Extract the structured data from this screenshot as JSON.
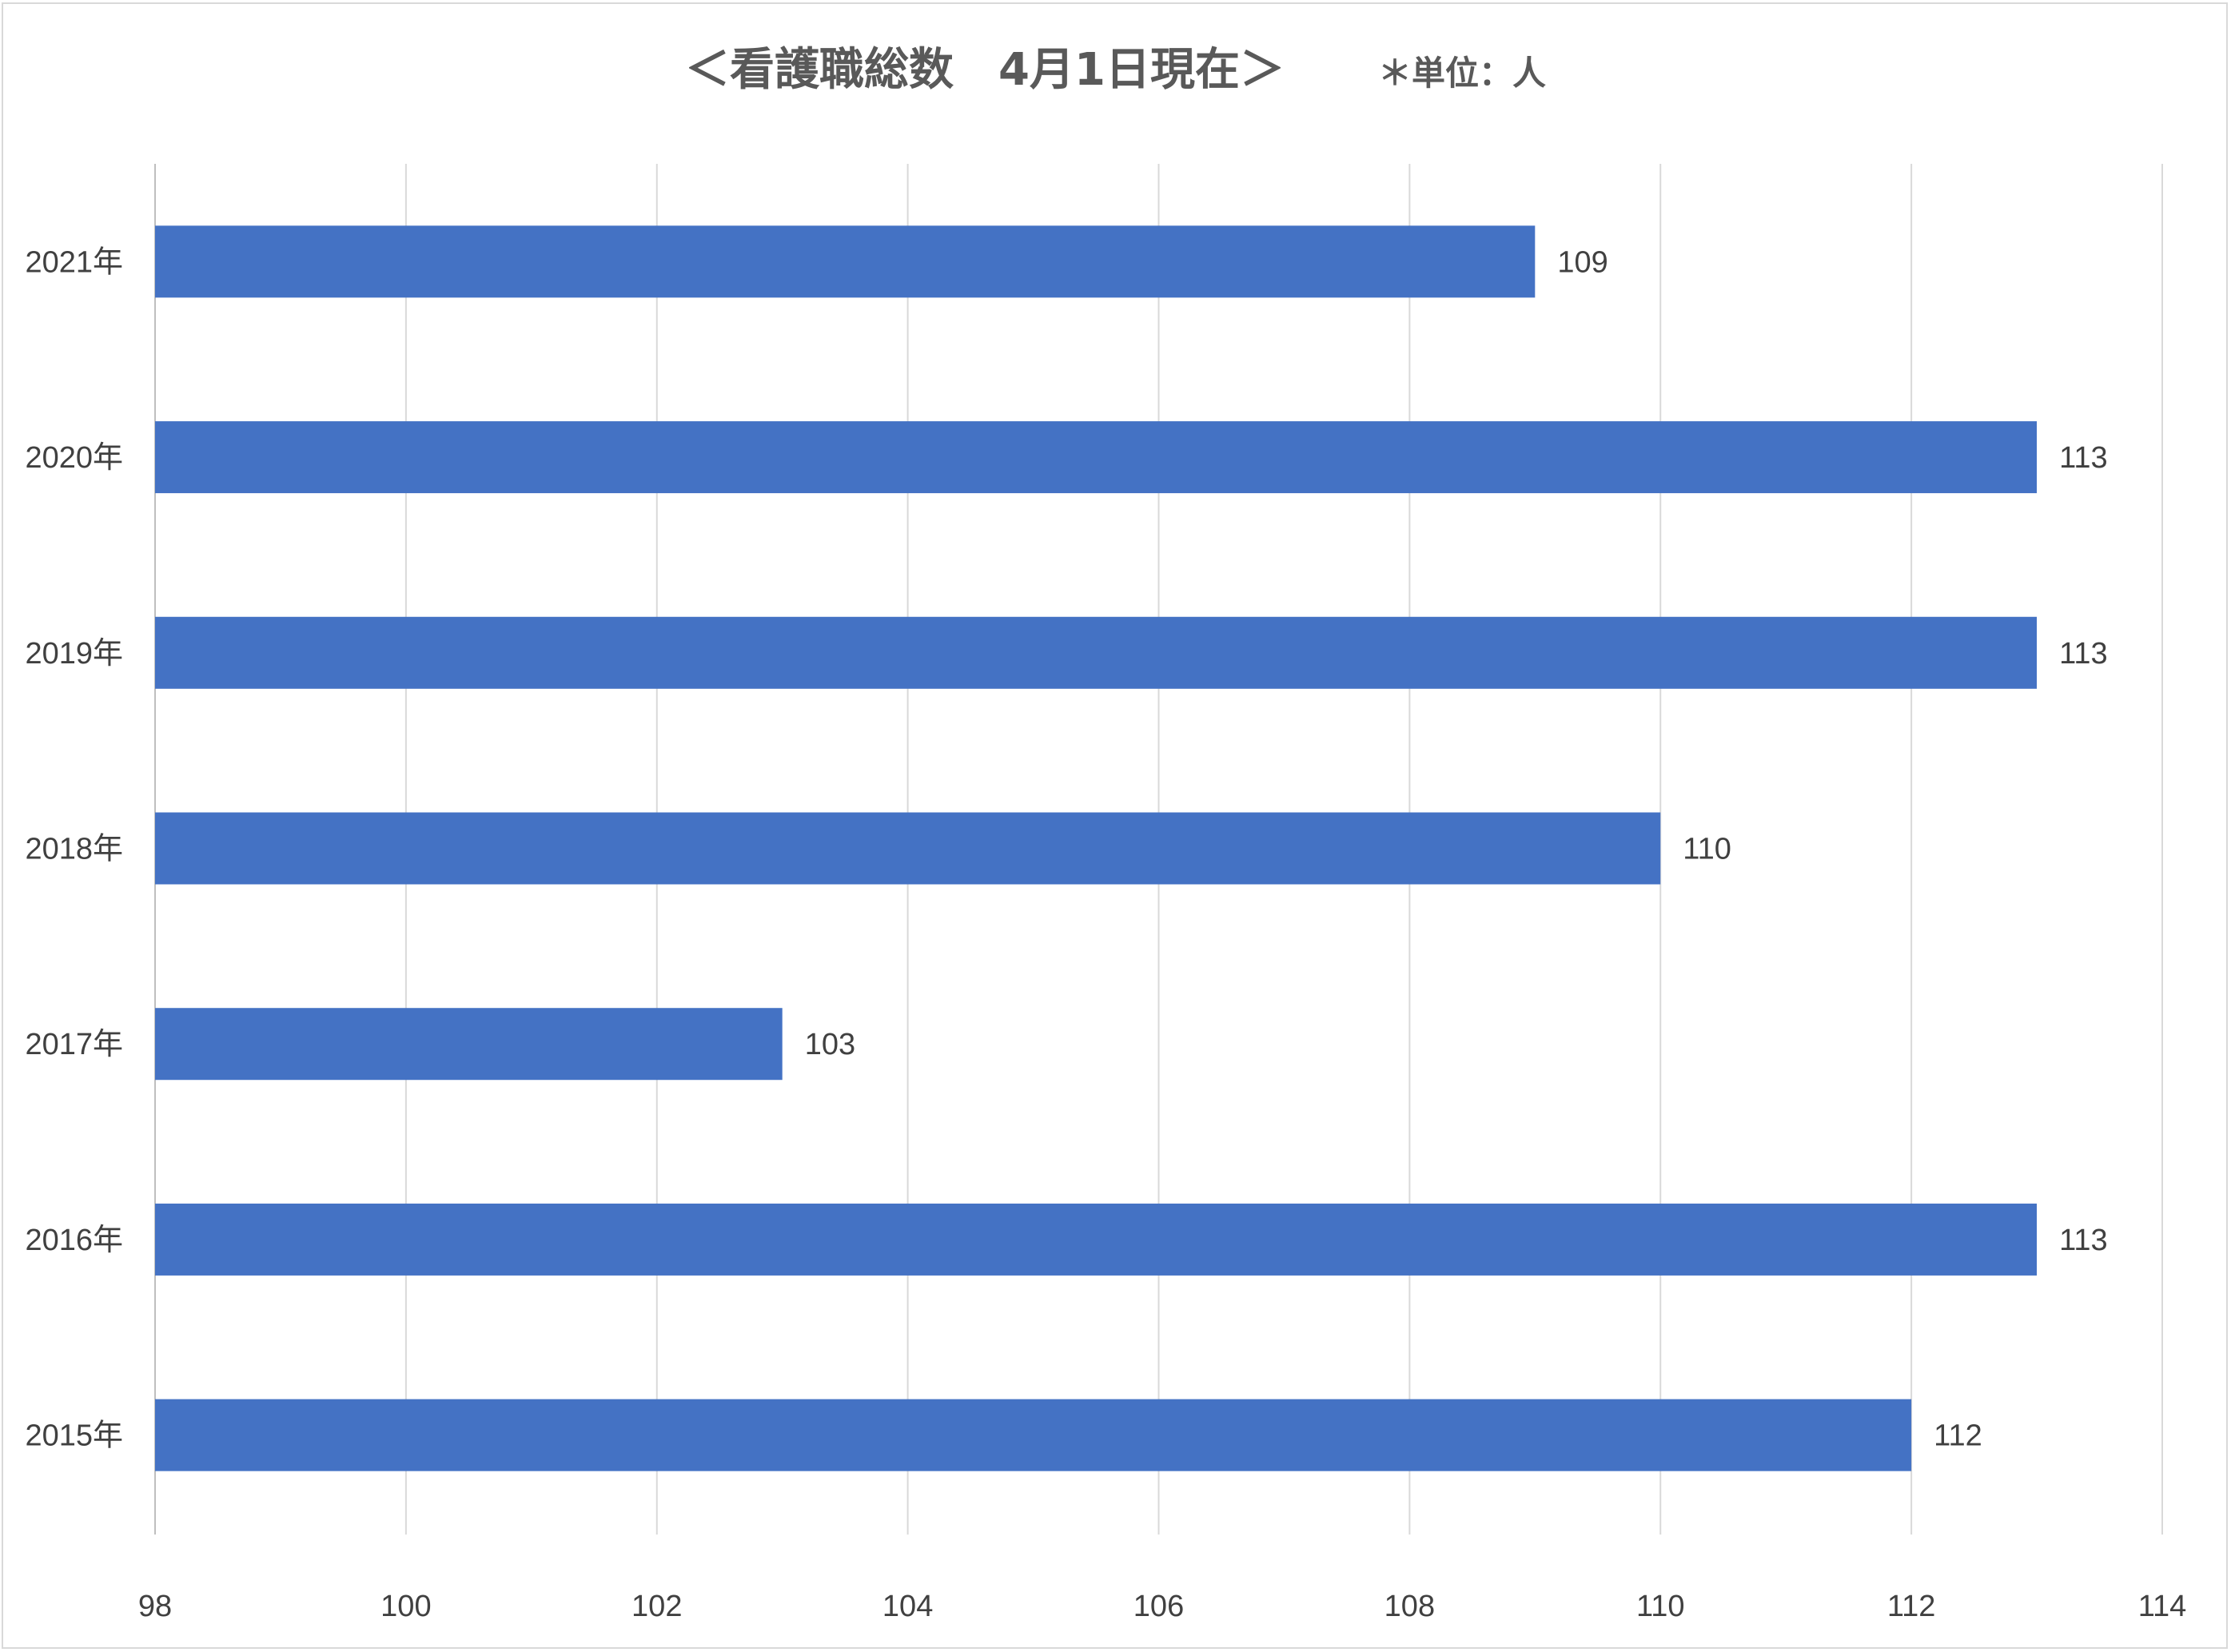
{
  "chart_data": {
    "type": "bar",
    "orientation": "horizontal",
    "title": "＜看護職総数　4月1日現在＞",
    "unit_note": "＊単位：人",
    "xlabel": "",
    "ylabel": "",
    "categories": [
      "2021年",
      "2020年",
      "2019年",
      "2018年",
      "2017年",
      "2016年",
      "2015年"
    ],
    "values": [
      109,
      113,
      113,
      110,
      103,
      113,
      112
    ],
    "data_labels": [
      "109",
      "113",
      "113",
      "110",
      "103",
      "113",
      "112"
    ],
    "xlim": [
      98,
      114
    ],
    "x_ticks": [
      98,
      100,
      102,
      104,
      106,
      108,
      110,
      112,
      114
    ],
    "x_tick_labels": [
      "98",
      "100",
      "102",
      "104",
      "106",
      "108",
      "110",
      "112",
      "114"
    ],
    "grid": "vertical",
    "legend": "none",
    "colors": {
      "bar": "#4472c4",
      "grid": "#d9d9d9",
      "text": "#404040",
      "title": "#595959"
    }
  }
}
